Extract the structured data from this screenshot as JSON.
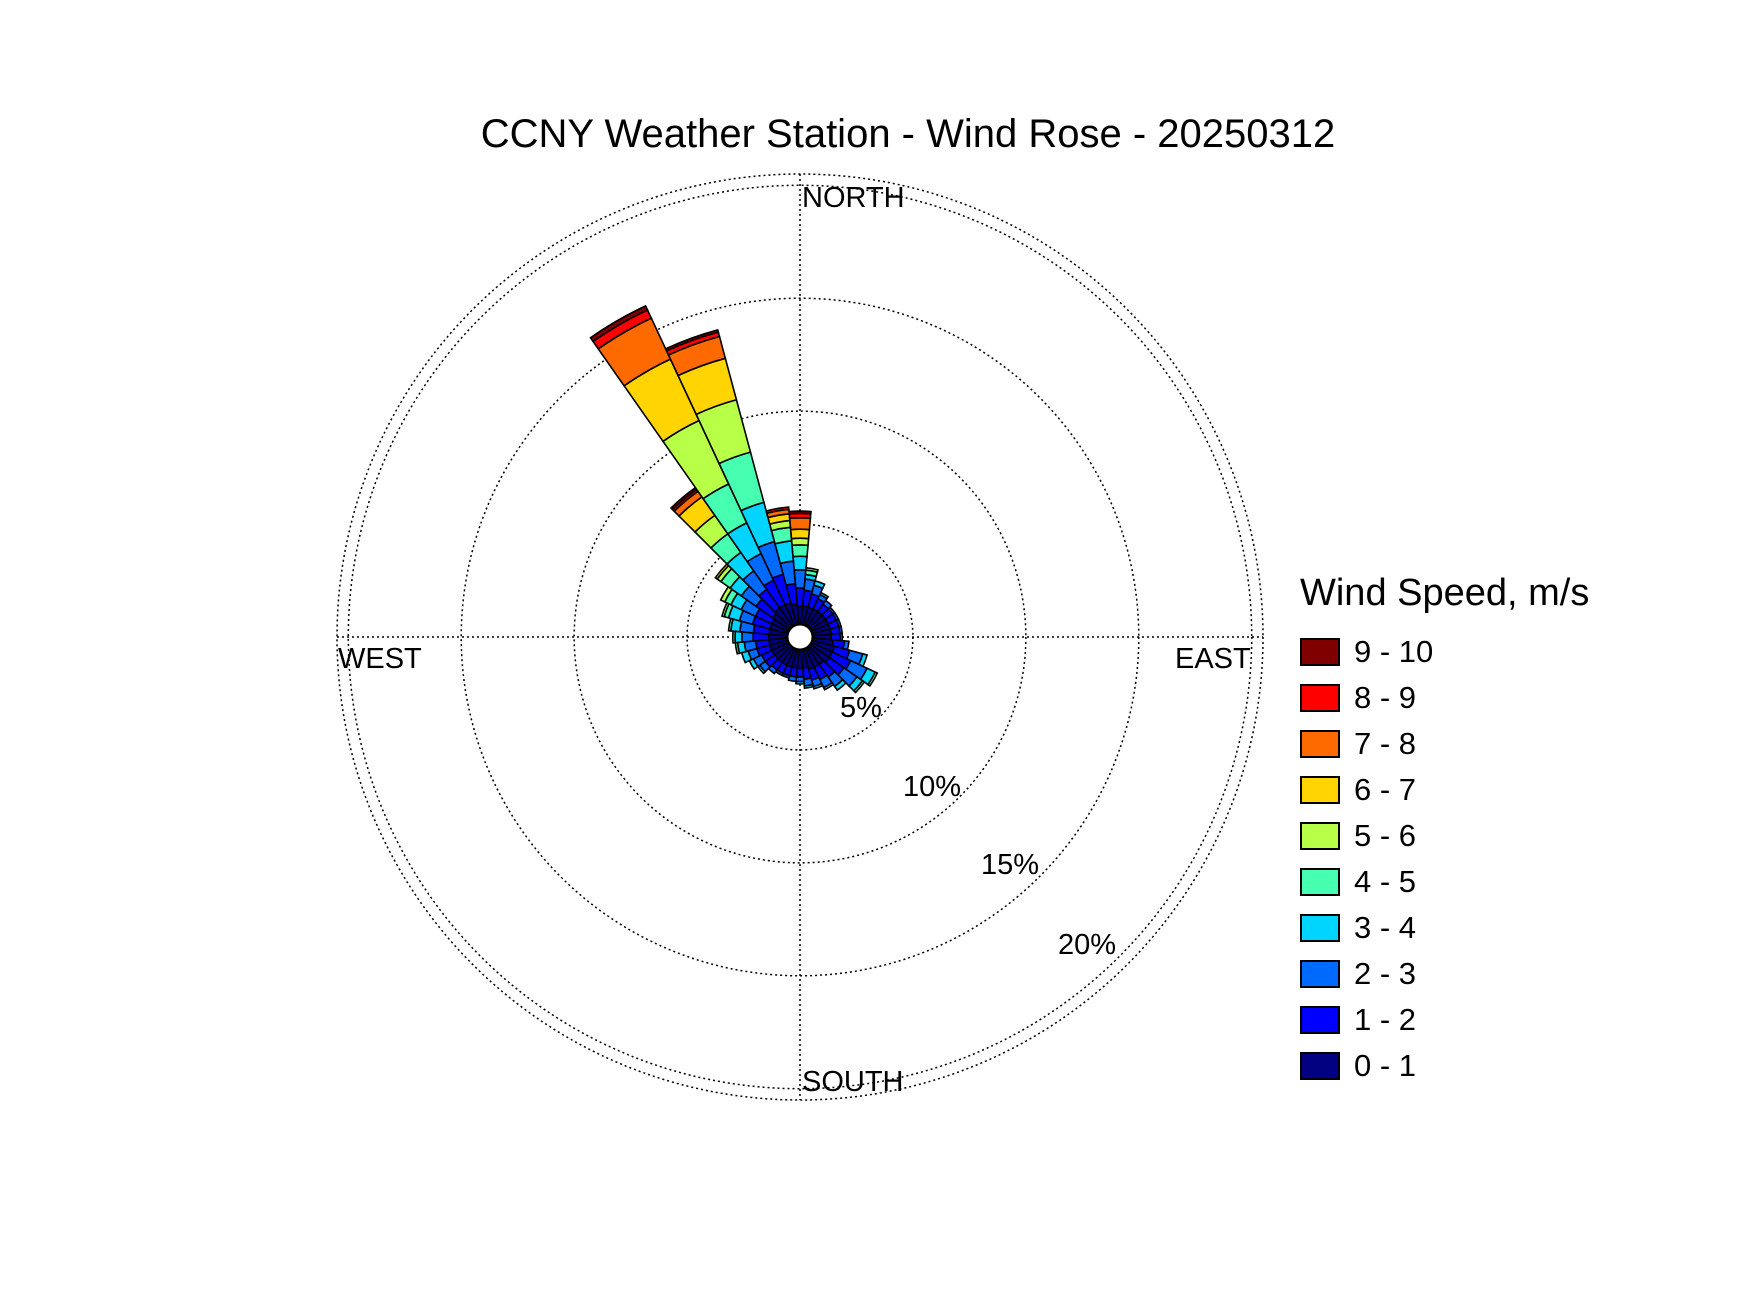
{
  "chart_data": {
    "type": "wind-rose",
    "title": "CCNY Weather Station - Wind Rose - 20250312",
    "directions": {
      "north": "NORTH",
      "south": "SOUTH",
      "east": "EAST",
      "west": "WEST"
    },
    "rings": [
      {
        "value": 5,
        "label": "5%"
      },
      {
        "value": 10,
        "label": "10%"
      },
      {
        "value": 15,
        "label": "15%"
      },
      {
        "value": 20,
        "label": "20%"
      }
    ],
    "rmax": 20.5,
    "grid": true,
    "legend": {
      "title": "Wind Speed, m/s",
      "placement": "right",
      "bins": [
        {
          "label": "9 - 10",
          "color": "#800000"
        },
        {
          "label": "8 - 9",
          "color": "#ff0000"
        },
        {
          "label": "7 - 8",
          "color": "#ff6a00"
        },
        {
          "label": "6 - 7",
          "color": "#ffd400"
        },
        {
          "label": "5 - 6",
          "color": "#b8ff47"
        },
        {
          "label": "4 - 5",
          "color": "#47ffb0"
        },
        {
          "label": "3 - 4",
          "color": "#00d4ff"
        },
        {
          "label": "2 - 3",
          "color": "#006aff"
        },
        {
          "label": "1 - 2",
          "color": "#0000ff"
        },
        {
          "label": "0 - 1",
          "color": "#000080"
        }
      ]
    },
    "bin_order": [
      "0 - 1",
      "1 - 2",
      "2 - 3",
      "3 - 4",
      "4 - 5",
      "5 - 6",
      "6 - 7",
      "7 - 8",
      "8 - 9",
      "9 - 10"
    ],
    "sectors": [
      {
        "direction_deg": 0,
        "cumulative_pct": [
          0.8,
          1.6,
          2.4,
          3.0,
          3.5,
          3.8,
          4.2,
          4.7,
          4.9,
          5.0
        ]
      },
      {
        "direction_deg": 10,
        "cumulative_pct": [
          0.8,
          1.5,
          2.0,
          2.2,
          2.4,
          2.5,
          2.5,
          2.5,
          2.5,
          2.5
        ]
      },
      {
        "direction_deg": 20,
        "cumulative_pct": [
          0.8,
          1.4,
          1.8,
          2.0,
          2.0,
          2.0,
          2.0,
          2.0,
          2.0,
          2.0
        ]
      },
      {
        "direction_deg": 30,
        "cumulative_pct": [
          0.8,
          1.3,
          1.5,
          1.6,
          1.6,
          1.6,
          1.6,
          1.6,
          1.6,
          1.6
        ]
      },
      {
        "direction_deg": 40,
        "cumulative_pct": [
          0.8,
          1.2,
          1.4,
          1.4,
          1.4,
          1.4,
          1.4,
          1.4,
          1.4,
          1.4
        ]
      },
      {
        "direction_deg": 50,
        "cumulative_pct": [
          0.8,
          1.2,
          1.3,
          1.3,
          1.3,
          1.3,
          1.3,
          1.3,
          1.3,
          1.3
        ]
      },
      {
        "direction_deg": 60,
        "cumulative_pct": [
          0.8,
          1.2,
          1.3,
          1.3,
          1.3,
          1.3,
          1.3,
          1.3,
          1.3,
          1.3
        ]
      },
      {
        "direction_deg": 70,
        "cumulative_pct": [
          0.8,
          1.2,
          1.3,
          1.3,
          1.3,
          1.3,
          1.3,
          1.3,
          1.3,
          1.3
        ]
      },
      {
        "direction_deg": 80,
        "cumulative_pct": [
          0.8,
          1.2,
          1.3,
          1.3,
          1.3,
          1.3,
          1.3,
          1.3,
          1.3,
          1.3
        ]
      },
      {
        "direction_deg": 90,
        "cumulative_pct": [
          0.8,
          1.2,
          1.3,
          1.3,
          1.3,
          1.3,
          1.3,
          1.3,
          1.3,
          1.3
        ]
      },
      {
        "direction_deg": 100,
        "cumulative_pct": [
          0.9,
          1.4,
          1.6,
          1.6,
          1.6,
          1.6,
          1.6,
          1.6,
          1.6,
          1.6
        ]
      },
      {
        "direction_deg": 110,
        "cumulative_pct": [
          1.0,
          1.7,
          2.3,
          2.5,
          2.5,
          2.5,
          2.5,
          2.5,
          2.5,
          2.5
        ]
      },
      {
        "direction_deg": 120,
        "cumulative_pct": [
          1.0,
          1.9,
          2.7,
          3.1,
          3.2,
          3.2,
          3.2,
          3.2,
          3.2,
          3.2
        ]
      },
      {
        "direction_deg": 130,
        "cumulative_pct": [
          1.0,
          1.8,
          2.5,
          2.8,
          2.9,
          2.9,
          2.9,
          2.9,
          2.9,
          2.9
        ]
      },
      {
        "direction_deg": 140,
        "cumulative_pct": [
          0.9,
          1.6,
          2.1,
          2.3,
          2.3,
          2.3,
          2.3,
          2.3,
          2.3,
          2.3
        ]
      },
      {
        "direction_deg": 150,
        "cumulative_pct": [
          0.9,
          1.5,
          1.9,
          2.0,
          2.0,
          2.0,
          2.0,
          2.0,
          2.0,
          2.0
        ]
      },
      {
        "direction_deg": 160,
        "cumulative_pct": [
          0.9,
          1.4,
          1.7,
          1.8,
          1.8,
          1.8,
          1.8,
          1.8,
          1.8,
          1.8
        ]
      },
      {
        "direction_deg": 170,
        "cumulative_pct": [
          0.8,
          1.3,
          1.6,
          1.7,
          1.7,
          1.7,
          1.7,
          1.7,
          1.7,
          1.7
        ]
      },
      {
        "direction_deg": 180,
        "cumulative_pct": [
          0.8,
          1.2,
          1.4,
          1.5,
          1.5,
          1.5,
          1.5,
          1.5,
          1.5,
          1.5
        ]
      },
      {
        "direction_deg": 190,
        "cumulative_pct": [
          0.8,
          1.2,
          1.4,
          1.4,
          1.4,
          1.4,
          1.4,
          1.4,
          1.4,
          1.4
        ]
      },
      {
        "direction_deg": 200,
        "cumulative_pct": [
          0.8,
          1.2,
          1.3,
          1.3,
          1.3,
          1.3,
          1.3,
          1.3,
          1.3,
          1.3
        ]
      },
      {
        "direction_deg": 210,
        "cumulative_pct": [
          0.8,
          1.2,
          1.3,
          1.3,
          1.3,
          1.3,
          1.3,
          1.3,
          1.3,
          1.3
        ]
      },
      {
        "direction_deg": 220,
        "cumulative_pct": [
          0.8,
          1.2,
          1.4,
          1.4,
          1.4,
          1.4,
          1.4,
          1.4,
          1.4,
          1.4
        ]
      },
      {
        "direction_deg": 230,
        "cumulative_pct": [
          0.8,
          1.3,
          1.6,
          1.7,
          1.7,
          1.7,
          1.7,
          1.7,
          1.7,
          1.7
        ]
      },
      {
        "direction_deg": 240,
        "cumulative_pct": [
          0.8,
          1.3,
          1.7,
          1.9,
          1.9,
          1.9,
          1.9,
          1.9,
          1.9,
          1.9
        ]
      },
      {
        "direction_deg": 250,
        "cumulative_pct": [
          0.8,
          1.4,
          1.8,
          2.1,
          2.1,
          2.1,
          2.1,
          2.1,
          2.1,
          2.1
        ]
      },
      {
        "direction_deg": 260,
        "cumulative_pct": [
          0.8,
          1.4,
          1.9,
          2.2,
          2.3,
          2.3,
          2.3,
          2.3,
          2.3,
          2.3
        ]
      },
      {
        "direction_deg": 270,
        "cumulative_pct": [
          0.8,
          1.5,
          2.0,
          2.3,
          2.4,
          2.4,
          2.4,
          2.4,
          2.4,
          2.4
        ]
      },
      {
        "direction_deg": 280,
        "cumulative_pct": [
          0.8,
          1.5,
          2.1,
          2.5,
          2.6,
          2.6,
          2.6,
          2.6,
          2.6,
          2.6
        ]
      },
      {
        "direction_deg": 290,
        "cumulative_pct": [
          0.8,
          1.6,
          2.2,
          2.7,
          2.9,
          3.0,
          3.0,
          3.0,
          3.0,
          3.0
        ]
      },
      {
        "direction_deg": 300,
        "cumulative_pct": [
          0.8,
          1.6,
          2.3,
          2.8,
          3.1,
          3.3,
          3.3,
          3.3,
          3.3,
          3.3
        ]
      },
      {
        "direction_deg": 310,
        "cumulative_pct": [
          0.9,
          1.8,
          2.6,
          3.2,
          3.7,
          3.9,
          4.0,
          4.0,
          4.0,
          4.0
        ]
      },
      {
        "direction_deg": 320,
        "cumulative_pct": [
          1.0,
          2.0,
          3.0,
          4.0,
          5.0,
          6.0,
          7.0,
          7.3,
          7.4,
          7.5
        ]
      },
      {
        "direction_deg": 330,
        "cumulative_pct": [
          1.0,
          2.2,
          3.5,
          5.0,
          6.9,
          10.0,
          13.0,
          15.0,
          15.4,
          15.6
        ]
      },
      {
        "direction_deg": 340,
        "cumulative_pct": [
          1.0,
          2.3,
          3.8,
          5.6,
          7.9,
          10.3,
          12.2,
          13.2,
          13.4,
          13.5
        ]
      },
      {
        "direction_deg": 350,
        "cumulative_pct": [
          0.9,
          1.8,
          2.8,
          3.7,
          4.3,
          4.6,
          4.9,
          5.1,
          5.2,
          5.2
        ]
      }
    ]
  }
}
